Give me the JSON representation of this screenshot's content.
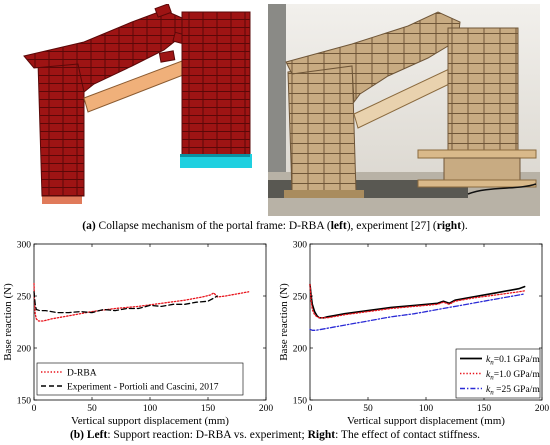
{
  "figure_a": {
    "caption_label": "(a)",
    "caption_text": " Collapse mechanism of the portal frame: D-RBA (",
    "caption_left": "left",
    "caption_mid": "), experiment [27] (",
    "caption_right": "right",
    "caption_end": ")."
  },
  "figure_b": {
    "caption_label": "(b)",
    "caption_left_word": " Left",
    "caption_text1": ": Support reaction: D-RBA vs. experiment; ",
    "caption_right_word": "Right",
    "caption_text2": ": The effect of contact stiffness."
  },
  "chart_data": [
    {
      "type": "line",
      "xlabel": "Vertical support displacement (mm)",
      "ylabel": "Base reaction (N)",
      "xlim": [
        0,
        200
      ],
      "ylim": [
        150,
        300
      ],
      "xticks": [
        "0",
        "50",
        "100",
        "150",
        "200"
      ],
      "yticks": [
        "150",
        "200",
        "250",
        "300"
      ],
      "grid": false,
      "legend_position": "bottom-left",
      "series": [
        {
          "name": "D-RBA",
          "color": "#e8141c",
          "style": "dotted",
          "x": [
            0,
            0.5,
            1,
            2,
            4,
            8,
            15,
            30,
            50,
            70,
            90,
            110,
            130,
            145,
            152,
            155,
            158,
            165,
            175,
            185
          ],
          "y": [
            262,
            243,
            233,
            228,
            226,
            226,
            228,
            231,
            235,
            238,
            240,
            243,
            246,
            249,
            251,
            253,
            249,
            250,
            252,
            254
          ]
        },
        {
          "name": "Experiment - Portioli and Cascini, 2017",
          "color": "#000000",
          "style": "dashed",
          "x": [
            0,
            1,
            2,
            5,
            10,
            20,
            30,
            40,
            50,
            60,
            70,
            80,
            90,
            100,
            110,
            120,
            130,
            140,
            150,
            155,
            158
          ],
          "y": [
            254,
            242,
            237,
            236,
            236,
            234,
            234,
            235,
            234,
            237,
            236,
            238,
            238,
            241,
            240,
            242,
            242,
            244,
            245,
            248,
            250
          ]
        }
      ]
    },
    {
      "type": "line",
      "xlabel": "Vertical support displacement (mm)",
      "ylabel": "Base reaction (N)",
      "xlim": [
        0,
        200
      ],
      "ylim": [
        150,
        300
      ],
      "xticks": [
        "0",
        "50",
        "100",
        "150",
        "200"
      ],
      "yticks": [
        "150",
        "200",
        "250",
        "300"
      ],
      "grid": false,
      "legend_position": "bottom-right",
      "series": [
        {
          "name_prefix": "k",
          "name_sub": "n",
          "name_suffix": "=0.1 GPa/m",
          "color": "#000000",
          "style": "solid",
          "x": [
            0,
            1,
            2,
            4,
            6,
            8,
            10,
            12,
            15,
            20,
            30,
            50,
            70,
            90,
            110,
            115,
            120,
            125,
            140,
            160,
            180,
            185
          ],
          "y": [
            261,
            250,
            242,
            235,
            231,
            229,
            229,
            229,
            230,
            231,
            233,
            236,
            239,
            241,
            243,
            245,
            243,
            246,
            249,
            253,
            257,
            259
          ]
        },
        {
          "name_prefix": "k",
          "name_sub": "n",
          "name_suffix": "=1.0 GPa/m",
          "color": "#e8141c",
          "style": "dotted",
          "x": [
            0,
            1,
            2,
            4,
            6,
            8,
            10,
            15,
            20,
            30,
            50,
            70,
            90,
            110,
            115,
            120,
            125,
            140,
            160,
            180,
            185
          ],
          "y": [
            261,
            245,
            237,
            232,
            230,
            229,
            229,
            229,
            230,
            232,
            235,
            238,
            240,
            242,
            244,
            242,
            245,
            248,
            251,
            254,
            255
          ]
        },
        {
          "name_prefix": "k",
          "name_sub": "n",
          "name_suffix": " =25 GPa/m",
          "color": "#2b2bd6",
          "style": "dashdot",
          "x": [
            0,
            2,
            5,
            10,
            20,
            30,
            50,
            70,
            90,
            110,
            120,
            130,
            140,
            160,
            180,
            185
          ],
          "y": [
            218,
            217,
            217,
            218,
            220,
            222,
            226,
            230,
            233,
            237,
            239,
            241,
            243,
            247,
            251,
            252
          ]
        }
      ]
    }
  ]
}
